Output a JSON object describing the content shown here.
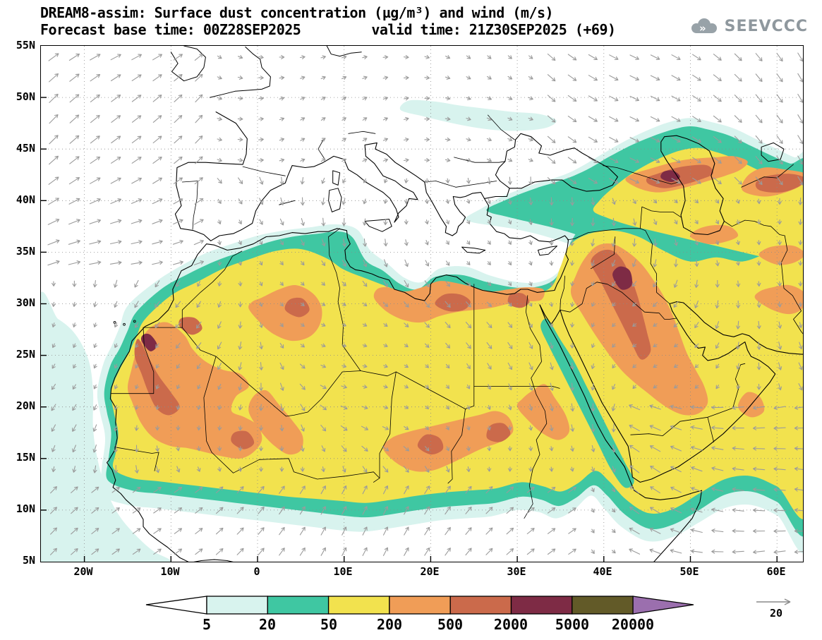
{
  "header": {
    "title": "DREAM8-assim: Surface dust concentration (µg/m³) and wind (m/s)",
    "forecast_base_time": "Forecast base time: 00Z28SEP2025",
    "valid_time": "valid time: 21Z30SEP2025 (+69)",
    "logo_text": "SEEVCCC"
  },
  "map": {
    "lat_ticks": [
      "55N",
      "50N",
      "45N",
      "40N",
      "35N",
      "30N",
      "25N",
      "20N",
      "15N",
      "10N",
      "5N"
    ],
    "lon_ticks": [
      "20W",
      "10W",
      "0",
      "10E",
      "20E",
      "30E",
      "40E",
      "50E",
      "60E"
    ]
  },
  "legend": {
    "values": [
      "5",
      "20",
      "50",
      "200",
      "500",
      "2000",
      "5000",
      "20000"
    ],
    "colors": [
      "#ffffff",
      "#d8f3ee",
      "#3fc7a2",
      "#f2e24e",
      "#f09d57",
      "#cb6a4b",
      "#7e2b45",
      "#625a28",
      "#9b6fae"
    ],
    "wind_reference": "20"
  },
  "palette": {
    "pale_cyan": "#d8f3ee",
    "teal": "#3fc7a2",
    "yellow": "#f2e24e",
    "orange": "#f09d57",
    "sienna": "#cb6a4b",
    "maroon": "#7e2b45",
    "olive": "#625a28",
    "purple": "#9b6fae",
    "wind_gray": "#9b9b9b",
    "coast_black": "#000000"
  }
}
